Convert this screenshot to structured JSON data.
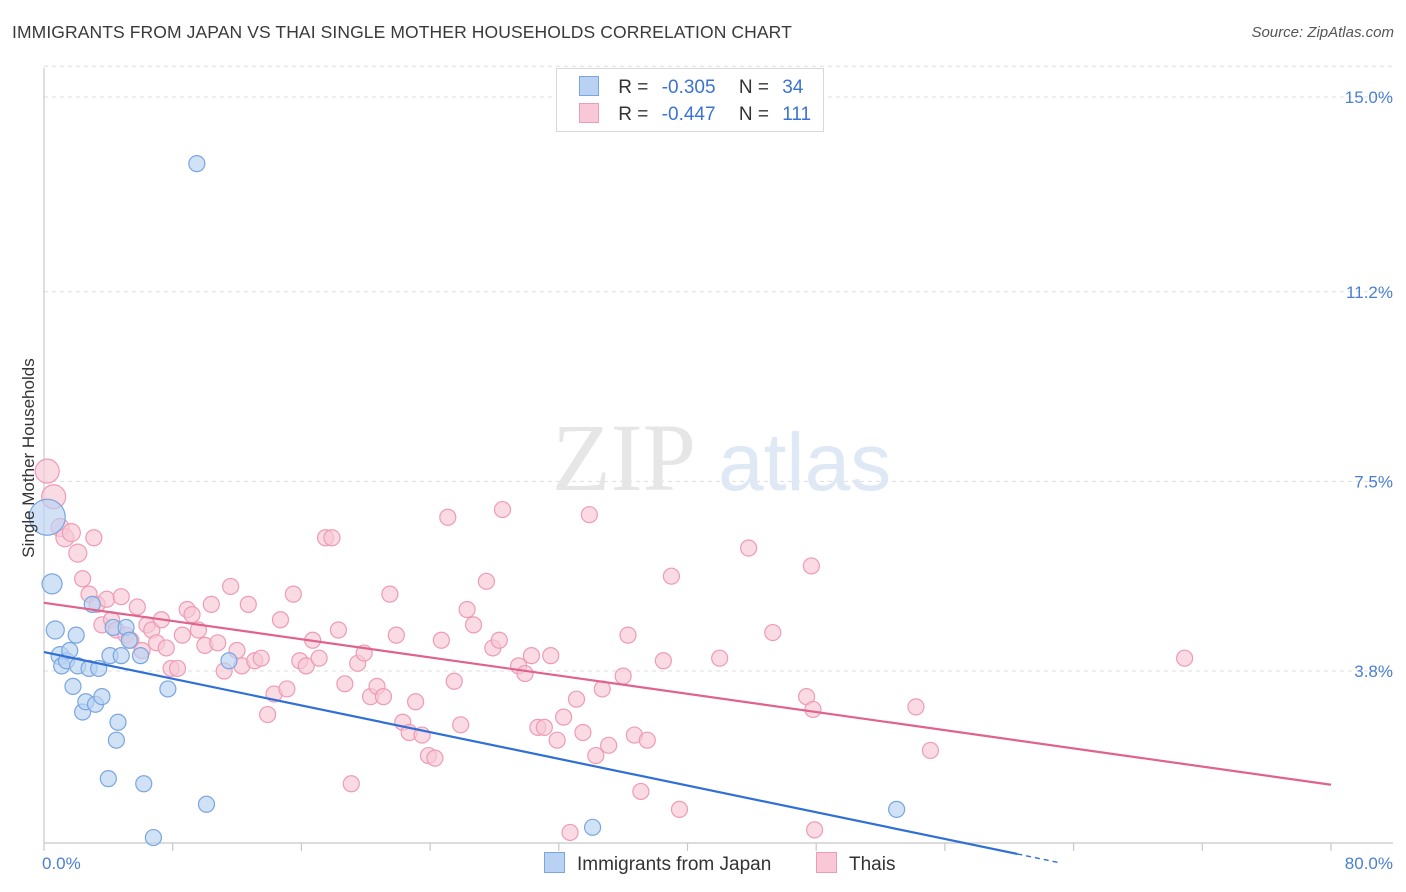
{
  "header": {
    "title": "IMMIGRANTS FROM JAPAN VS THAI SINGLE MOTHER HOUSEHOLDS CORRELATION CHART",
    "source": "Source: ZipAtlas.com"
  },
  "watermark": {
    "zip": "ZIP",
    "atlas": "atlas"
  },
  "legend": {
    "series": [
      {
        "r_label": "R =",
        "r_value": "-0.305",
        "n_label": "N =",
        "n_value": "34"
      },
      {
        "r_label": "R =",
        "r_value": "-0.447",
        "n_label": "N =",
        "n_value": "111"
      }
    ]
  },
  "bottom_legend": {
    "japan": "Immigrants from Japan",
    "thais": "Thais"
  },
  "colors": {
    "japan_fill": "#b9d2f3",
    "japan_stroke": "#7aa6e0",
    "japan_line": "#2f6fd6",
    "thai_fill": "#f8c8d6",
    "thai_stroke": "#ee9bb5",
    "thai_line": "#e0628e",
    "tick_text": "#4a7fd1",
    "grid": "#dddddd"
  },
  "chart_data": {
    "type": "scatter",
    "title": "IMMIGRANTS FROM JAPAN VS THAI SINGLE MOTHER HOUSEHOLDS CORRELATION CHART",
    "xlabel": "",
    "ylabel": "Single Mother Households",
    "xlim": [
      0,
      80
    ],
    "ylim": [
      0,
      15.8
    ],
    "x_tick_labels": [
      "0.0%",
      "80.0%"
    ],
    "y_ticks": [
      3.8,
      7.5,
      11.2,
      15.0
    ],
    "y_tick_labels": [
      "3.8%",
      "7.5%",
      "11.2%",
      "15.0%"
    ],
    "series": [
      {
        "name": "Immigrants from Japan",
        "r": -0.305,
        "n": 34,
        "trend": {
          "x0": 0,
          "y0": 4.17,
          "x1": 60.5,
          "y1": 0.23,
          "dash_to_x": 63.0
        },
        "points": [
          {
            "x": 0.2,
            "y": 6.8,
            "s": 18
          },
          {
            "x": 0.5,
            "y": 5.5,
            "s": 10
          },
          {
            "x": 0.7,
            "y": 4.6,
            "s": 9
          },
          {
            "x": 1.0,
            "y": 4.1,
            "s": 9
          },
          {
            "x": 1.1,
            "y": 3.9,
            "s": 8
          },
          {
            "x": 1.4,
            "y": 4.0,
            "s": 8
          },
          {
            "x": 1.6,
            "y": 4.2,
            "s": 8
          },
          {
            "x": 1.8,
            "y": 3.5,
            "s": 8
          },
          {
            "x": 2.0,
            "y": 4.5,
            "s": 8
          },
          {
            "x": 2.1,
            "y": 3.9,
            "s": 8
          },
          {
            "x": 2.4,
            "y": 3.0,
            "s": 8
          },
          {
            "x": 2.6,
            "y": 3.2,
            "s": 8
          },
          {
            "x": 2.8,
            "y": 3.85,
            "s": 8
          },
          {
            "x": 3.0,
            "y": 5.1,
            "s": 8
          },
          {
            "x": 3.2,
            "y": 3.15,
            "s": 8
          },
          {
            "x": 3.4,
            "y": 3.85,
            "s": 8
          },
          {
            "x": 3.6,
            "y": 3.3,
            "s": 8
          },
          {
            "x": 4.0,
            "y": 1.7,
            "s": 8
          },
          {
            "x": 4.1,
            "y": 4.1,
            "s": 8
          },
          {
            "x": 4.3,
            "y": 4.65,
            "s": 8
          },
          {
            "x": 4.6,
            "y": 2.8,
            "s": 8
          },
          {
            "x": 4.5,
            "y": 2.45,
            "s": 8
          },
          {
            "x": 4.8,
            "y": 4.1,
            "s": 8
          },
          {
            "x": 5.1,
            "y": 4.65,
            "s": 8
          },
          {
            "x": 5.3,
            "y": 4.4,
            "s": 8
          },
          {
            "x": 6.0,
            "y": 4.1,
            "s": 8
          },
          {
            "x": 6.2,
            "y": 1.6,
            "s": 8
          },
          {
            "x": 6.8,
            "y": 0.55,
            "s": 8
          },
          {
            "x": 7.7,
            "y": 3.45,
            "s": 8
          },
          {
            "x": 9.5,
            "y": 13.7,
            "s": 8
          },
          {
            "x": 10.1,
            "y": 1.2,
            "s": 8
          },
          {
            "x": 11.5,
            "y": 4.0,
            "s": 8
          },
          {
            "x": 34.1,
            "y": 0.75,
            "s": 8
          },
          {
            "x": 53.0,
            "y": 1.1,
            "s": 8
          }
        ]
      },
      {
        "name": "Thais",
        "r": -0.447,
        "n": 111,
        "trend": {
          "x0": 0,
          "y0": 5.13,
          "x1": 80,
          "y1": 1.58
        },
        "points": [
          {
            "x": 0.2,
            "y": 7.7,
            "s": 12
          },
          {
            "x": 0.6,
            "y": 7.2,
            "s": 12
          },
          {
            "x": 1.0,
            "y": 6.6,
            "s": 9
          },
          {
            "x": 1.3,
            "y": 6.4,
            "s": 9
          },
          {
            "x": 1.7,
            "y": 6.5,
            "s": 9
          },
          {
            "x": 2.1,
            "y": 6.1,
            "s": 9
          },
          {
            "x": 2.4,
            "y": 5.6,
            "s": 8
          },
          {
            "x": 2.8,
            "y": 5.3,
            "s": 8
          },
          {
            "x": 3.1,
            "y": 6.4,
            "s": 8
          },
          {
            "x": 3.3,
            "y": 5.1,
            "s": 8
          },
          {
            "x": 3.6,
            "y": 4.7,
            "s": 8
          },
          {
            "x": 3.9,
            "y": 5.2,
            "s": 8
          },
          {
            "x": 4.2,
            "y": 4.8,
            "s": 8
          },
          {
            "x": 4.5,
            "y": 4.6,
            "s": 8
          },
          {
            "x": 4.8,
            "y": 5.25,
            "s": 8
          },
          {
            "x": 5.1,
            "y": 4.5,
            "s": 8
          },
          {
            "x": 5.4,
            "y": 4.4,
            "s": 8
          },
          {
            "x": 5.8,
            "y": 5.05,
            "s": 8
          },
          {
            "x": 6.1,
            "y": 4.2,
            "s": 8
          },
          {
            "x": 6.4,
            "y": 4.7,
            "s": 8
          },
          {
            "x": 6.7,
            "y": 4.6,
            "s": 8
          },
          {
            "x": 7.0,
            "y": 4.35,
            "s": 8
          },
          {
            "x": 7.3,
            "y": 4.8,
            "s": 8
          },
          {
            "x": 7.6,
            "y": 4.25,
            "s": 8
          },
          {
            "x": 7.9,
            "y": 3.85,
            "s": 8
          },
          {
            "x": 8.3,
            "y": 3.85,
            "s": 8
          },
          {
            "x": 8.6,
            "y": 4.5,
            "s": 8
          },
          {
            "x": 8.9,
            "y": 5.0,
            "s": 8
          },
          {
            "x": 9.2,
            "y": 4.9,
            "s": 8
          },
          {
            "x": 9.6,
            "y": 4.6,
            "s": 8
          },
          {
            "x": 10.0,
            "y": 4.3,
            "s": 8
          },
          {
            "x": 10.4,
            "y": 5.1,
            "s": 8
          },
          {
            "x": 10.8,
            "y": 4.35,
            "s": 8
          },
          {
            "x": 11.2,
            "y": 3.8,
            "s": 8
          },
          {
            "x": 11.6,
            "y": 5.45,
            "s": 8
          },
          {
            "x": 12.0,
            "y": 4.2,
            "s": 8
          },
          {
            "x": 12.3,
            "y": 3.9,
            "s": 8
          },
          {
            "x": 12.7,
            "y": 5.1,
            "s": 8
          },
          {
            "x": 13.1,
            "y": 4.0,
            "s": 8
          },
          {
            "x": 13.5,
            "y": 4.05,
            "s": 8
          },
          {
            "x": 13.9,
            "y": 2.95,
            "s": 8
          },
          {
            "x": 14.3,
            "y": 3.35,
            "s": 8
          },
          {
            "x": 14.7,
            "y": 4.8,
            "s": 8
          },
          {
            "x": 15.1,
            "y": 3.45,
            "s": 8
          },
          {
            "x": 15.5,
            "y": 5.3,
            "s": 8
          },
          {
            "x": 15.9,
            "y": 4.0,
            "s": 8
          },
          {
            "x": 16.3,
            "y": 3.9,
            "s": 8
          },
          {
            "x": 16.7,
            "y": 4.4,
            "s": 8
          },
          {
            "x": 17.1,
            "y": 4.05,
            "s": 8
          },
          {
            "x": 17.5,
            "y": 6.4,
            "s": 8
          },
          {
            "x": 17.9,
            "y": 6.4,
            "s": 8
          },
          {
            "x": 18.3,
            "y": 4.6,
            "s": 8
          },
          {
            "x": 18.7,
            "y": 3.55,
            "s": 8
          },
          {
            "x": 19.1,
            "y": 1.6,
            "s": 8
          },
          {
            "x": 19.5,
            "y": 3.95,
            "s": 8
          },
          {
            "x": 19.9,
            "y": 4.15,
            "s": 8
          },
          {
            "x": 20.3,
            "y": 3.3,
            "s": 8
          },
          {
            "x": 20.7,
            "y": 3.5,
            "s": 8
          },
          {
            "x": 21.1,
            "y": 3.3,
            "s": 8
          },
          {
            "x": 21.5,
            "y": 5.3,
            "s": 8
          },
          {
            "x": 21.9,
            "y": 4.5,
            "s": 8
          },
          {
            "x": 22.3,
            "y": 2.8,
            "s": 8
          },
          {
            "x": 22.7,
            "y": 2.6,
            "s": 8
          },
          {
            "x": 23.1,
            "y": 3.2,
            "s": 8
          },
          {
            "x": 23.5,
            "y": 2.55,
            "s": 8
          },
          {
            "x": 23.9,
            "y": 2.15,
            "s": 8
          },
          {
            "x": 24.3,
            "y": 2.1,
            "s": 8
          },
          {
            "x": 24.7,
            "y": 4.4,
            "s": 8
          },
          {
            "x": 25.1,
            "y": 6.8,
            "s": 8
          },
          {
            "x": 25.5,
            "y": 3.6,
            "s": 8
          },
          {
            "x": 25.9,
            "y": 2.75,
            "s": 8
          },
          {
            "x": 26.3,
            "y": 5.0,
            "s": 8
          },
          {
            "x": 26.7,
            "y": 4.7,
            "s": 8
          },
          {
            "x": 27.5,
            "y": 5.55,
            "s": 8
          },
          {
            "x": 27.9,
            "y": 4.25,
            "s": 8
          },
          {
            "x": 28.3,
            "y": 4.4,
            "s": 8
          },
          {
            "x": 28.5,
            "y": 6.95,
            "s": 8
          },
          {
            "x": 29.5,
            "y": 3.9,
            "s": 8
          },
          {
            "x": 29.9,
            "y": 3.75,
            "s": 8
          },
          {
            "x": 30.3,
            "y": 4.1,
            "s": 8
          },
          {
            "x": 30.7,
            "y": 2.7,
            "s": 8
          },
          {
            "x": 31.1,
            "y": 2.7,
            "s": 8
          },
          {
            "x": 31.5,
            "y": 4.1,
            "s": 8
          },
          {
            "x": 31.9,
            "y": 2.45,
            "s": 8
          },
          {
            "x": 32.3,
            "y": 2.9,
            "s": 8
          },
          {
            "x": 32.7,
            "y": 0.65,
            "s": 8
          },
          {
            "x": 33.1,
            "y": 3.25,
            "s": 8
          },
          {
            "x": 33.5,
            "y": 2.6,
            "s": 8
          },
          {
            "x": 33.9,
            "y": 6.85,
            "s": 8
          },
          {
            "x": 34.3,
            "y": 2.15,
            "s": 8
          },
          {
            "x": 34.7,
            "y": 3.45,
            "s": 8
          },
          {
            "x": 35.1,
            "y": 2.35,
            "s": 8
          },
          {
            "x": 36.0,
            "y": 3.7,
            "s": 8
          },
          {
            "x": 36.3,
            "y": 4.5,
            "s": 8
          },
          {
            "x": 36.7,
            "y": 2.55,
            "s": 8
          },
          {
            "x": 37.1,
            "y": 1.45,
            "s": 8
          },
          {
            "x": 37.5,
            "y": 2.45,
            "s": 8
          },
          {
            "x": 38.5,
            "y": 4.0,
            "s": 8
          },
          {
            "x": 39.0,
            "y": 5.65,
            "s": 8
          },
          {
            "x": 39.5,
            "y": 1.1,
            "s": 8
          },
          {
            "x": 42.0,
            "y": 4.05,
            "s": 8
          },
          {
            "x": 43.8,
            "y": 6.2,
            "s": 8
          },
          {
            "x": 45.3,
            "y": 4.55,
            "s": 8
          },
          {
            "x": 47.4,
            "y": 3.3,
            "s": 8
          },
          {
            "x": 47.8,
            "y": 3.05,
            "s": 8
          },
          {
            "x": 47.9,
            "y": 0.7,
            "s": 8
          },
          {
            "x": 47.7,
            "y": 5.85,
            "s": 8
          },
          {
            "x": 54.2,
            "y": 3.1,
            "s": 8
          },
          {
            "x": 55.1,
            "y": 2.25,
            "s": 8
          },
          {
            "x": 70.9,
            "y": 4.05,
            "s": 8
          }
        ]
      }
    ]
  }
}
